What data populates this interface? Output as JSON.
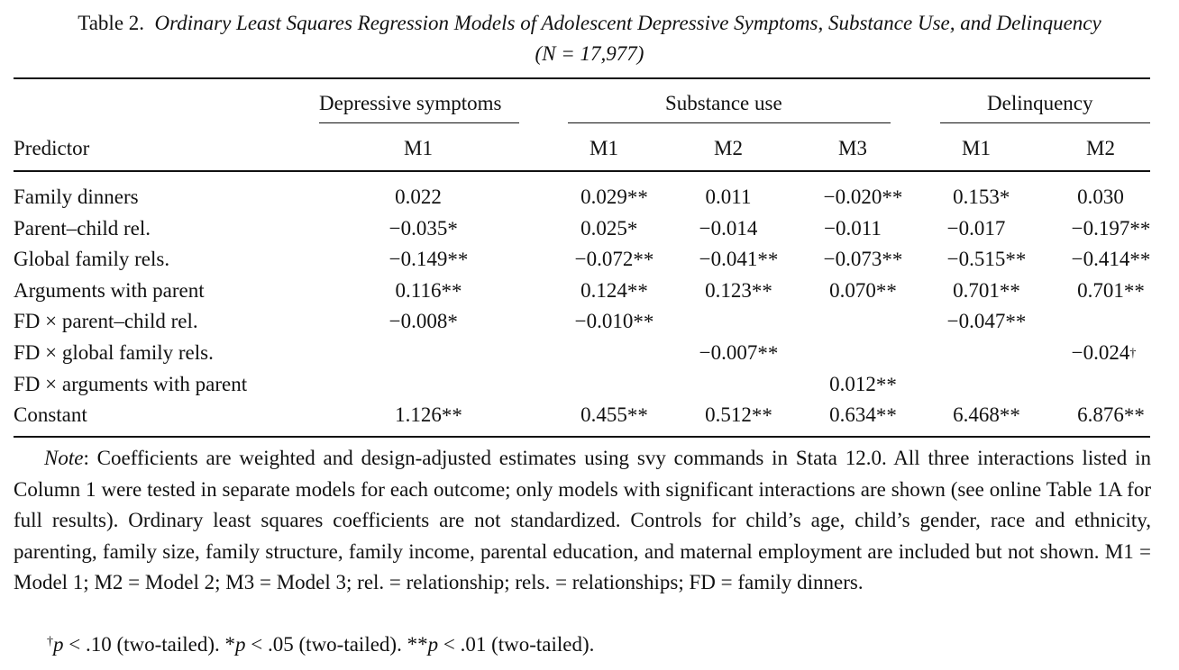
{
  "caption": {
    "label": "Table 2.",
    "title": "Ordinary Least Squares Regression Models of Adolescent Depressive Symptoms, Substance Use, and Delinquency",
    "n_line": "(N = 17,977)"
  },
  "groups": {
    "depressive": "Depressive symptoms",
    "substance": "Substance use",
    "delinquency": "Delinquency"
  },
  "columns": {
    "predictor": "Predictor",
    "dep_m1": "M1",
    "sub_m1": "M1",
    "sub_m2": "M2",
    "sub_m3": "M3",
    "del_m1": "M1",
    "del_m2": "M2"
  },
  "rows": [
    {
      "label": "Family dinners",
      "cells": [
        [
          "0.022",
          ""
        ],
        [
          "0.029",
          "**"
        ],
        [
          "0.011",
          ""
        ],
        [
          "−0.020",
          "**"
        ],
        [
          "0.153",
          "*"
        ],
        [
          "0.030",
          ""
        ]
      ]
    },
    {
      "label": "Parent–child rel.",
      "cells": [
        [
          "−0.035",
          "*"
        ],
        [
          "0.025",
          "*"
        ],
        [
          "−0.014",
          ""
        ],
        [
          "−0.011",
          ""
        ],
        [
          "−0.017",
          ""
        ],
        [
          "−0.197",
          "**"
        ]
      ]
    },
    {
      "label": "Global family rels.",
      "cells": [
        [
          "−0.149",
          "**"
        ],
        [
          "−0.072",
          "**"
        ],
        [
          "−0.041",
          "**"
        ],
        [
          "−0.073",
          "**"
        ],
        [
          "−0.515",
          "**"
        ],
        [
          "−0.414",
          "**"
        ]
      ]
    },
    {
      "label": "Arguments with parent",
      "cells": [
        [
          "0.116",
          "**"
        ],
        [
          "0.124",
          "**"
        ],
        [
          "0.123",
          "**"
        ],
        [
          "0.070",
          "**"
        ],
        [
          "0.701",
          "**"
        ],
        [
          "0.701",
          "**"
        ]
      ]
    },
    {
      "label": "FD × parent–child rel.",
      "cells": [
        [
          "−0.008",
          "*"
        ],
        [
          "−0.010",
          "**"
        ],
        [
          "",
          ""
        ],
        [
          "",
          ""
        ],
        [
          "−0.047",
          "**"
        ],
        [
          "",
          ""
        ]
      ]
    },
    {
      "label": "FD × global family rels.",
      "cells": [
        [
          "",
          ""
        ],
        [
          "",
          ""
        ],
        [
          "−0.007",
          "**"
        ],
        [
          "",
          ""
        ],
        [
          "",
          ""
        ],
        [
          "−0.024",
          "†"
        ]
      ]
    },
    {
      "label": "FD × arguments with parent",
      "cells": [
        [
          "",
          ""
        ],
        [
          "",
          ""
        ],
        [
          "",
          ""
        ],
        [
          "0.012",
          "**"
        ],
        [
          "",
          ""
        ],
        [
          "",
          ""
        ]
      ]
    },
    {
      "label": "Constant",
      "cells": [
        [
          "1.126",
          "**"
        ],
        [
          "0.455",
          "**"
        ],
        [
          "0.512",
          "**"
        ],
        [
          "0.634",
          "**"
        ],
        [
          "6.468",
          "**"
        ],
        [
          "6.876",
          "**"
        ]
      ]
    }
  ],
  "note": {
    "lead": "Note",
    "text": ": Coefficients are weighted and design-adjusted estimates using svy commands in Stata 12.0. All three interactions listed in Column 1 were tested in separate models for each outcome; only models with significant interactions are shown (see online Table 1A for full results). Ordinary least squares coefficients are not standardized. Controls for child’s age, child’s gender, race and ethnicity, parenting, family size, family structure, family income, parental education, and maternal employment are included but not shown. M1 = Model 1; M2 = Model 2; M3 = Model 3; rel. = relationship; rels. = relationships; FD = family dinners."
  },
  "footnote": {
    "dagger": "†",
    "p": "p",
    "t1": " < .10 (two-tailed). *",
    "t2": " < .05 (two-tailed). **",
    "t3": " < .01 (two-tailed)."
  }
}
